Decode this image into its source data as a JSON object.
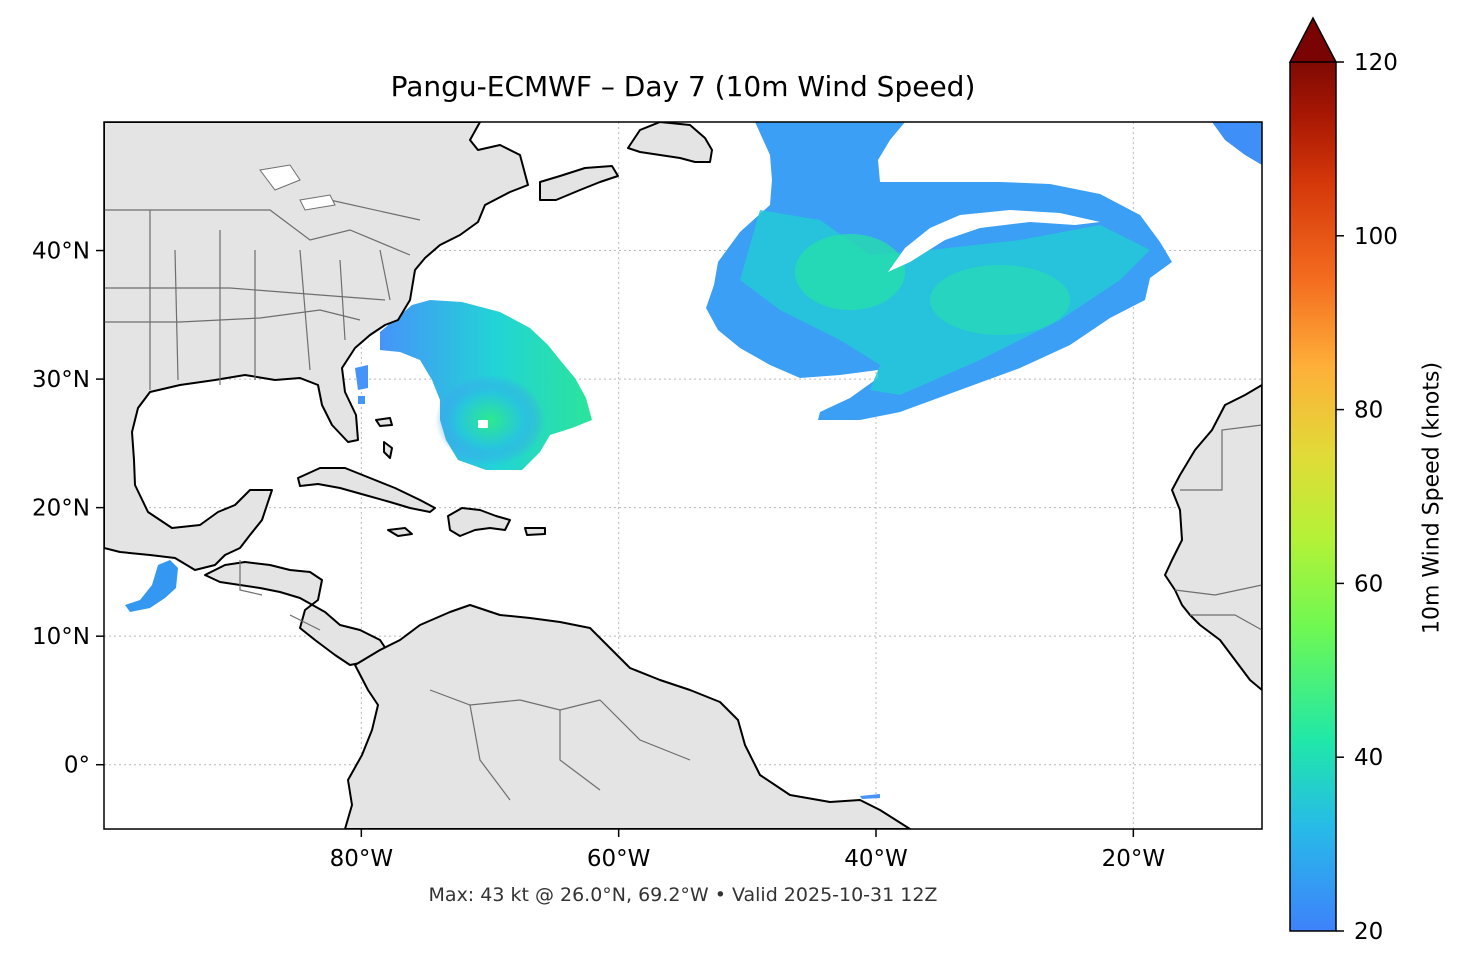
{
  "map": {
    "title": "Pangu-ECMWF – Day 7 (10m Wind Speed)",
    "footer": "Max: 43 kt @ 26.0°N, 69.2°W • Valid 2025-10-31 12Z",
    "lon_range": [
      -100,
      -10
    ],
    "lat_range": [
      -5,
      50
    ],
    "lon_ticks": [
      {
        "value": -80,
        "label": "80°W"
      },
      {
        "value": -60,
        "label": "60°W"
      },
      {
        "value": -40,
        "label": "40°W"
      },
      {
        "value": -20,
        "label": "20°W"
      }
    ],
    "lat_ticks": [
      {
        "value": 40,
        "label": "40°N"
      },
      {
        "value": 30,
        "label": "30°N"
      },
      {
        "value": 20,
        "label": "20°N"
      },
      {
        "value": 10,
        "label": "10°N"
      },
      {
        "value": 0,
        "label": "0°"
      }
    ],
    "gridlines": "dotted",
    "land_color": "#e4e4e4",
    "coastline_color": "#000000",
    "border_color": "#6e6e6e"
  },
  "colorbar": {
    "label": "10m Wind Speed (knots)",
    "min": 20,
    "max": 120,
    "extend": "max",
    "ticks": [
      {
        "value": 20,
        "label": "20"
      },
      {
        "value": 40,
        "label": "40"
      },
      {
        "value": 60,
        "label": "60"
      },
      {
        "value": 80,
        "label": "80"
      },
      {
        "value": 100,
        "label": "100"
      },
      {
        "value": 120,
        "label": "120"
      }
    ],
    "colors": [
      "#4693f9",
      "#27c3e6",
      "#24eb9d",
      "#a8f53a",
      "#d6db35",
      "#fbb03a",
      "#f2671b",
      "#cd2d05",
      "#7a0403"
    ]
  }
}
